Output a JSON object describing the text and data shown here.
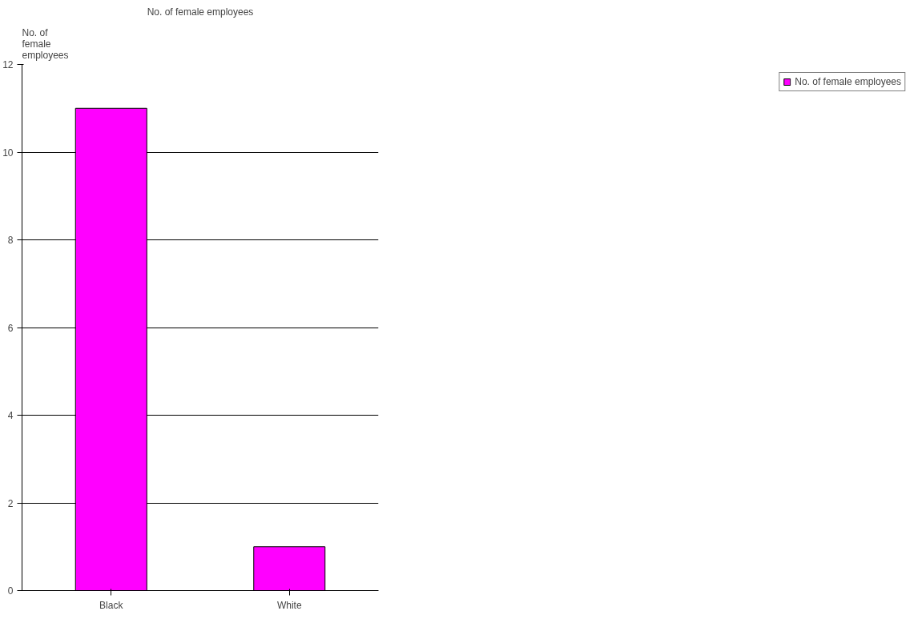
{
  "chart_data": {
    "type": "bar",
    "title": "No. of female employees",
    "ylabel": "No. of female employees",
    "categories": [
      "Black",
      "White"
    ],
    "series": [
      {
        "name": "No. of female employees",
        "color": "#ff00ff",
        "values": [
          11,
          1
        ]
      }
    ],
    "ylim": [
      0,
      12
    ],
    "yticks": [
      0,
      2,
      4,
      6,
      8,
      10,
      12
    ],
    "grid": "y",
    "legend": "right"
  }
}
